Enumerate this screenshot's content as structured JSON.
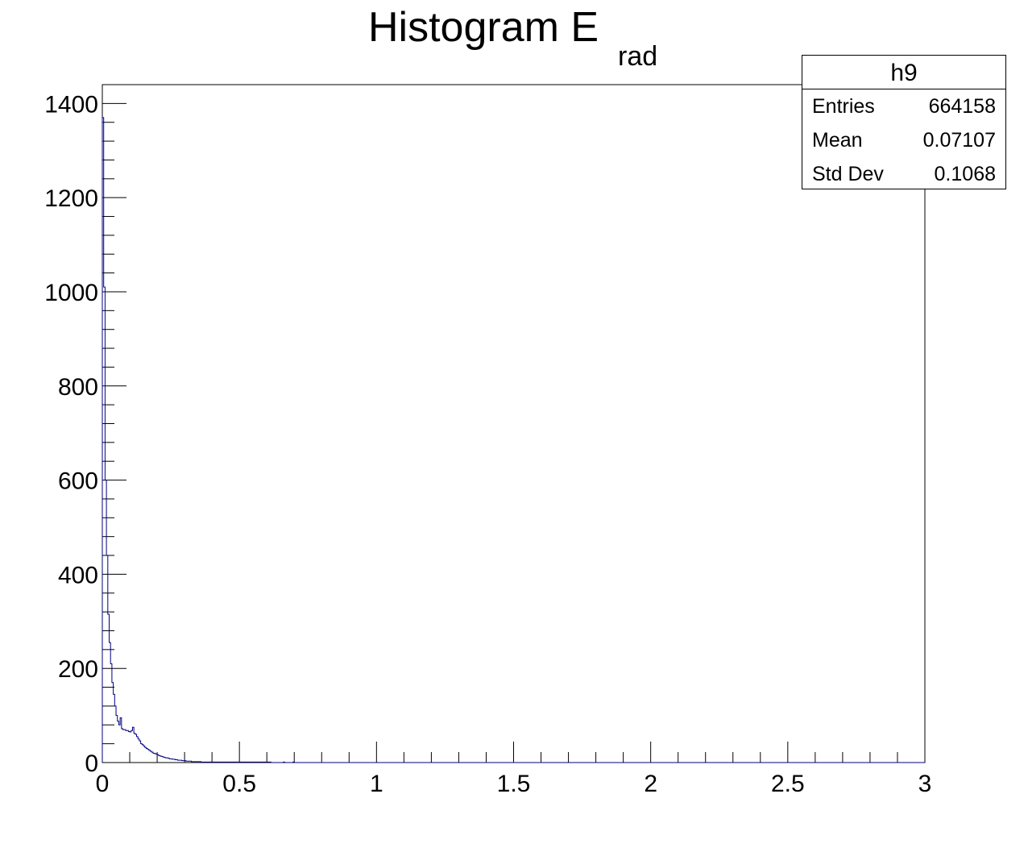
{
  "title": {
    "main": "Histogram E",
    "subscript": "rad"
  },
  "stats": {
    "name": "h9",
    "rows": [
      {
        "label": "Entries",
        "value": "664158"
      },
      {
        "label": "Mean",
        "value": "0.07107"
      },
      {
        "label": "Std Dev",
        "value": "0.1068"
      }
    ]
  },
  "colors": {
    "line": "#000080",
    "axis": "#000000",
    "background": "#ffffff"
  },
  "chart_data": {
    "type": "histogram",
    "title": "Histogram E_rad",
    "xlabel": "",
    "ylabel": "",
    "xlim": [
      0,
      3
    ],
    "ylim": [
      0,
      1440
    ],
    "grid": false,
    "legend": "none",
    "bin_width": 0.005,
    "x_ticks": [
      "0",
      "0.5",
      "1",
      "1.5",
      "2",
      "2.5",
      "3"
    ],
    "y_ticks": [
      "0",
      "200",
      "400",
      "600",
      "800",
      "1000",
      "1200",
      "1400"
    ],
    "x_tick_values": [
      0,
      0.5,
      1,
      1.5,
      2,
      2.5,
      3
    ],
    "y_tick_values": [
      0,
      200,
      400,
      600,
      800,
      1000,
      1200,
      1400
    ],
    "bin_edges_start": 0,
    "counts": [
      1370,
      1010,
      600,
      440,
      315,
      255,
      210,
      170,
      145,
      120,
      100,
      88,
      80,
      95,
      72,
      70,
      70,
      68,
      68,
      66,
      65,
      68,
      75,
      62,
      60,
      55,
      50,
      46,
      40,
      38,
      35,
      32,
      30,
      28,
      26,
      24,
      22,
      20,
      19,
      18,
      17,
      15,
      14,
      13,
      12,
      11,
      10,
      10,
      9,
      8,
      8,
      7,
      7,
      6,
      6,
      5,
      5,
      5,
      4,
      4,
      4,
      3,
      3,
      3,
      3,
      2,
      2,
      2,
      2,
      2,
      2,
      2,
      1,
      1,
      1,
      1,
      1,
      1,
      1,
      1,
      1,
      1,
      1,
      1,
      1,
      1,
      1,
      1,
      1,
      1,
      1,
      1,
      1,
      1,
      1,
      1,
      1,
      1,
      1,
      1,
      1,
      1,
      1,
      1,
      1,
      1,
      1,
      1,
      1,
      1,
      1,
      1,
      1,
      1,
      1,
      1,
      1,
      1,
      1,
      1,
      1,
      1,
      1,
      0,
      0,
      0,
      0,
      0,
      0,
      0,
      0,
      0,
      1,
      0,
      0,
      0,
      0,
      0,
      0,
      1,
      0
    ]
  }
}
